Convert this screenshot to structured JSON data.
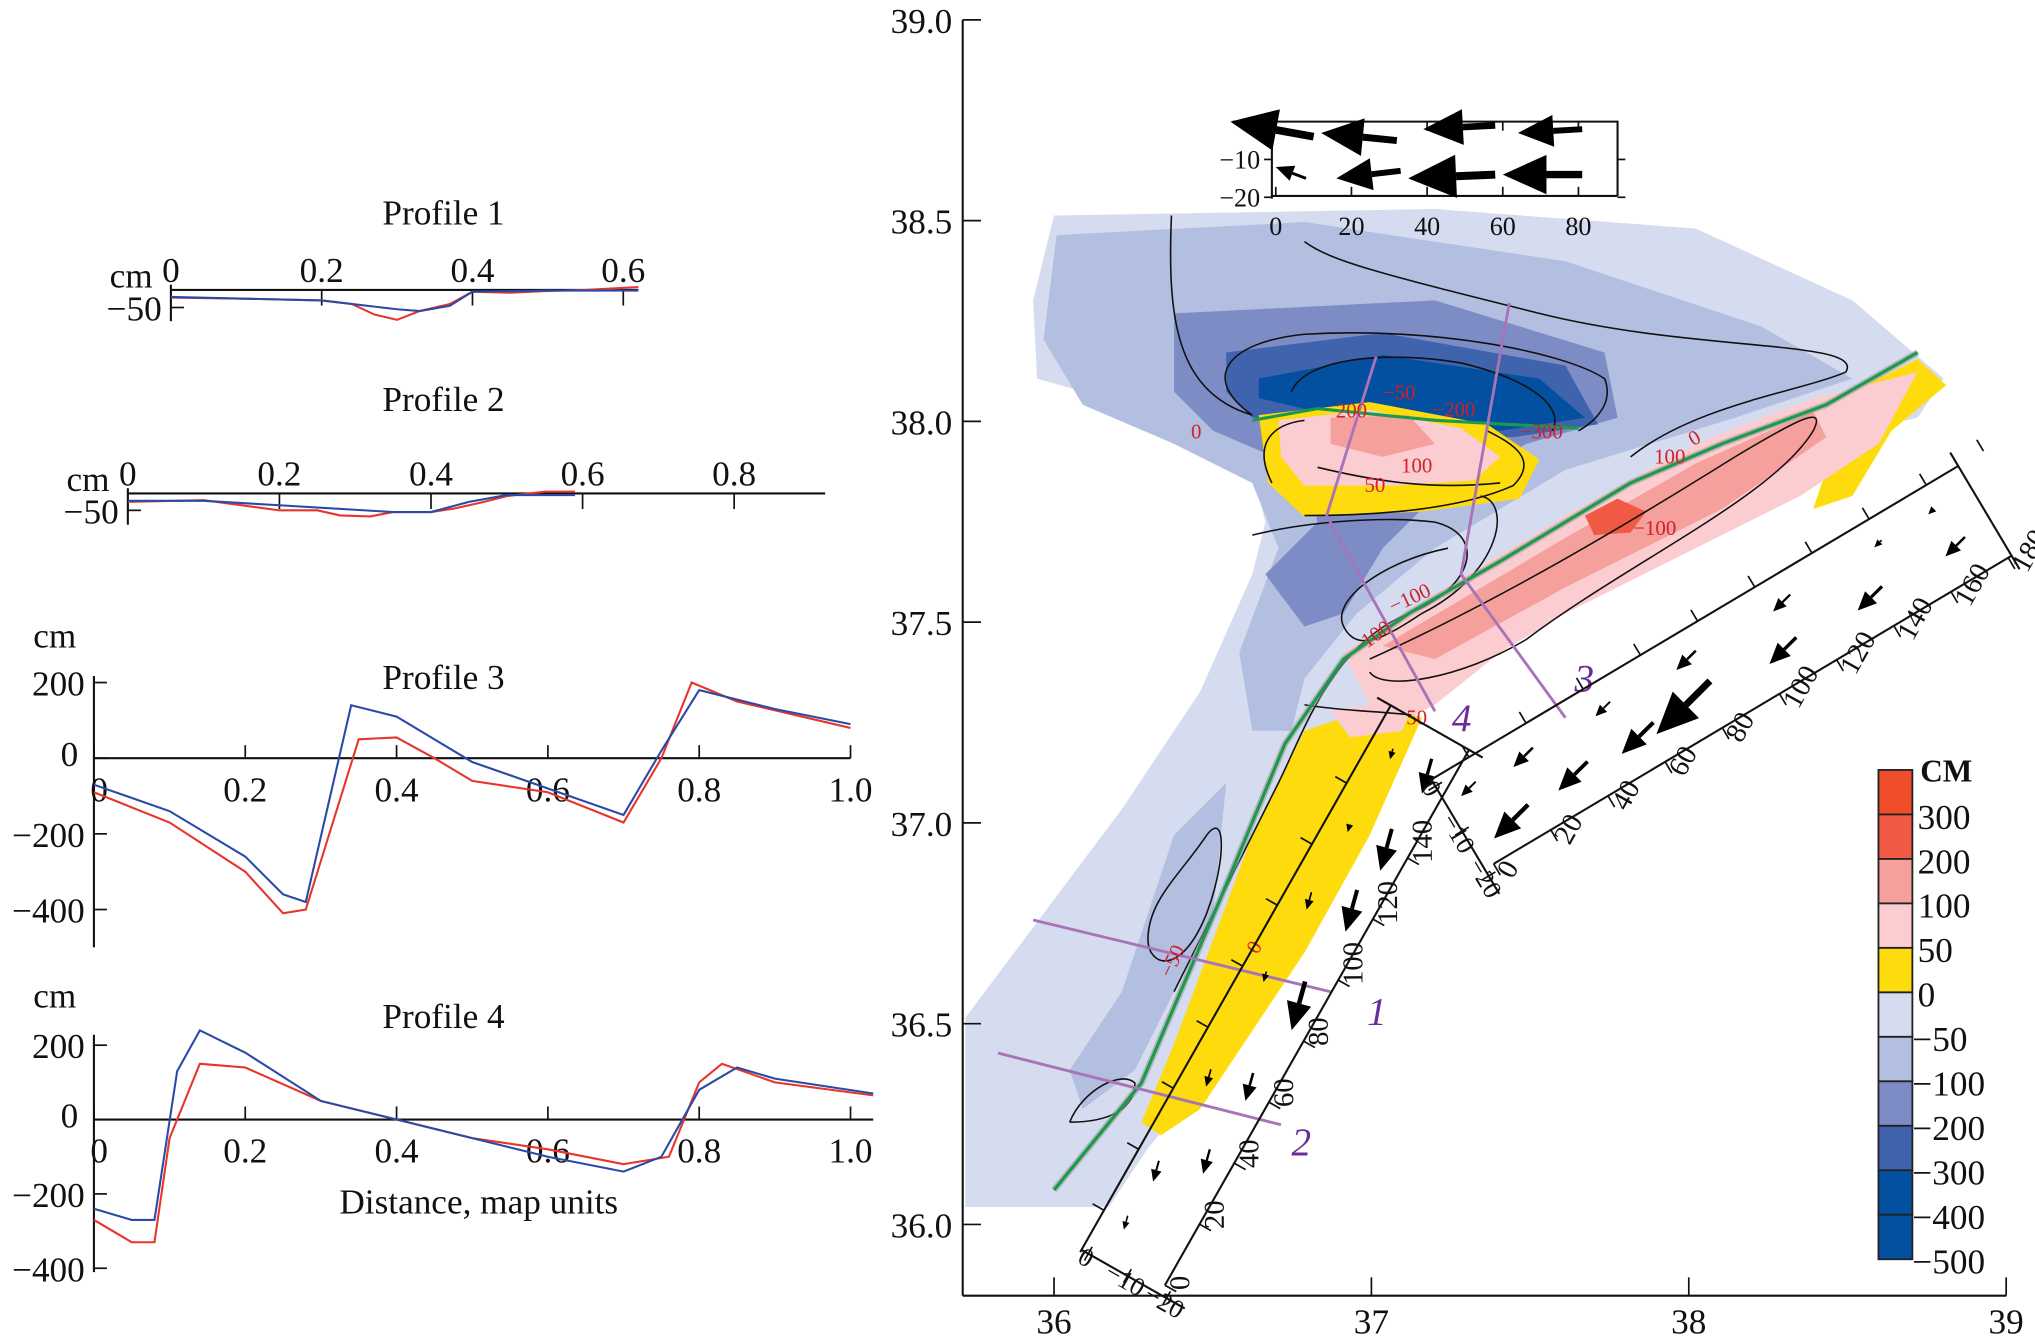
{
  "chart_data": [
    {
      "type": "line",
      "title": "Profile 1",
      "ylabel": "cm",
      "xticks": [
        0,
        0.2,
        0.4,
        0.6
      ],
      "xtick_labels": [
        "0",
        "0.2",
        "0.4",
        "0.6"
      ],
      "yticks": [
        -50
      ],
      "ytick_labels": [
        "−50"
      ],
      "xlim": [
        0,
        0.62
      ],
      "series": [
        {
          "color": "#e8352b",
          "points": [
            [
              0,
              -22
            ],
            [
              0.1,
              -25
            ],
            [
              0.2,
              -30
            ],
            [
              0.24,
              -40
            ],
            [
              0.27,
              -70
            ],
            [
              0.3,
              -85
            ],
            [
              0.33,
              -60
            ],
            [
              0.37,
              -40
            ],
            [
              0.4,
              -5
            ],
            [
              0.45,
              -8
            ],
            [
              0.5,
              -3
            ],
            [
              0.55,
              0
            ],
            [
              0.62,
              8
            ]
          ]
        },
        {
          "color": "#2a4aa8",
          "points": [
            [
              0,
              -20
            ],
            [
              0.2,
              -30
            ],
            [
              0.3,
              -55
            ],
            [
              0.33,
              -60
            ],
            [
              0.37,
              -45
            ],
            [
              0.4,
              -5
            ],
            [
              0.5,
              -2
            ],
            [
              0.62,
              -2
            ]
          ]
        }
      ]
    },
    {
      "type": "line",
      "title": "Profile 2",
      "ylabel": "cm",
      "xticks": [
        0,
        0.2,
        0.4,
        0.6,
        0.8
      ],
      "xtick_labels": [
        "0",
        "0.2",
        "0.4",
        "0.6",
        "0.8"
      ],
      "yticks": [
        -50
      ],
      "ytick_labels": [
        "−50"
      ],
      "xlim": [
        0,
        0.92
      ],
      "series": [
        {
          "color": "#e8352b",
          "points": [
            [
              0,
              -25
            ],
            [
              0.1,
              -20
            ],
            [
              0.2,
              -50
            ],
            [
              0.25,
              -50
            ],
            [
              0.28,
              -65
            ],
            [
              0.32,
              -68
            ],
            [
              0.35,
              -55
            ],
            [
              0.4,
              -55
            ],
            [
              0.43,
              -45
            ],
            [
              0.47,
              -25
            ],
            [
              0.5,
              -8
            ],
            [
              0.55,
              5
            ],
            [
              0.59,
              5
            ]
          ]
        },
        {
          "color": "#2a4aa8",
          "points": [
            [
              0,
              -22
            ],
            [
              0.1,
              -22
            ],
            [
              0.2,
              -35
            ],
            [
              0.35,
              -55
            ],
            [
              0.4,
              -55
            ],
            [
              0.45,
              -25
            ],
            [
              0.5,
              -5
            ],
            [
              0.59,
              -5
            ]
          ]
        }
      ]
    },
    {
      "type": "line",
      "title": "Profile 3",
      "ylabel": "cm",
      "xticks": [
        0,
        0.2,
        0.4,
        0.6,
        0.8,
        1.0
      ],
      "xtick_labels": [
        "0",
        "0.2",
        "0.4",
        "0.6",
        "0.8",
        "1.0"
      ],
      "yticks": [
        200,
        0,
        -200,
        -400
      ],
      "ytick_labels": [
        "200",
        "0",
        "−200",
        "−400"
      ],
      "xlim": [
        0,
        1.0
      ],
      "series": [
        {
          "color": "#e8352b",
          "points": [
            [
              0,
              -90
            ],
            [
              0.1,
              -170
            ],
            [
              0.2,
              -300
            ],
            [
              0.25,
              -410
            ],
            [
              0.28,
              -400
            ],
            [
              0.35,
              50
            ],
            [
              0.4,
              55
            ],
            [
              0.45,
              0
            ],
            [
              0.5,
              -60
            ],
            [
              0.6,
              -90
            ],
            [
              0.7,
              -170
            ],
            [
              0.75,
              0
            ],
            [
              0.79,
              200
            ],
            [
              0.85,
              150
            ],
            [
              1.0,
              80
            ]
          ]
        },
        {
          "color": "#2a4aa8",
          "points": [
            [
              0,
              -70
            ],
            [
              0.1,
              -140
            ],
            [
              0.2,
              -260
            ],
            [
              0.25,
              -360
            ],
            [
              0.28,
              -380
            ],
            [
              0.34,
              140
            ],
            [
              0.4,
              110
            ],
            [
              0.5,
              -10
            ],
            [
              0.6,
              -80
            ],
            [
              0.7,
              -150
            ],
            [
              0.75,
              20
            ],
            [
              0.8,
              180
            ],
            [
              0.9,
              130
            ],
            [
              1.0,
              90
            ]
          ]
        }
      ]
    },
    {
      "type": "line",
      "title": "Profile 4",
      "ylabel": "cm",
      "xlabel": "Distance, map units",
      "xticks": [
        0,
        0.2,
        0.4,
        0.6,
        0.8,
        1.0
      ],
      "xtick_labels": [
        "0",
        "0.2",
        "0.4",
        "0.6",
        "0.8",
        "1.0"
      ],
      "yticks": [
        200,
        0,
        -200,
        -400
      ],
      "ytick_labels": [
        "200",
        "0",
        "−200",
        "−400"
      ],
      "xlim": [
        0,
        1.03
      ],
      "series": [
        {
          "color": "#e8352b",
          "points": [
            [
              0,
              -270
            ],
            [
              0.05,
              -330
            ],
            [
              0.08,
              -330
            ],
            [
              0.1,
              -50
            ],
            [
              0.14,
              150
            ],
            [
              0.2,
              140
            ],
            [
              0.3,
              50
            ],
            [
              0.4,
              0
            ],
            [
              0.5,
              -50
            ],
            [
              0.6,
              -80
            ],
            [
              0.7,
              -120
            ],
            [
              0.76,
              -100
            ],
            [
              0.8,
              100
            ],
            [
              0.83,
              150
            ],
            [
              0.9,
              100
            ],
            [
              1.03,
              65
            ]
          ]
        },
        {
          "color": "#2a4aa8",
          "points": [
            [
              0,
              -240
            ],
            [
              0.05,
              -270
            ],
            [
              0.08,
              -270
            ],
            [
              0.11,
              130
            ],
            [
              0.14,
              240
            ],
            [
              0.2,
              180
            ],
            [
              0.3,
              50
            ],
            [
              0.4,
              0
            ],
            [
              0.5,
              -50
            ],
            [
              0.6,
              -100
            ],
            [
              0.7,
              -140
            ],
            [
              0.75,
              -100
            ],
            [
              0.8,
              80
            ],
            [
              0.85,
              140
            ],
            [
              0.9,
              110
            ],
            [
              1.03,
              70
            ]
          ]
        }
      ]
    },
    {
      "type": "heatmap",
      "title": "",
      "xticks": [
        36,
        37,
        38,
        39
      ],
      "xtick_labels": [
        "36",
        "37",
        "38",
        "39"
      ],
      "yticks": [
        39.0,
        38.5,
        38.0,
        37.5,
        37.0,
        36.5,
        36.0
      ],
      "ytick_labels": [
        "39.0",
        "38.5",
        "38.0",
        "37.5",
        "37.0",
        "36.5",
        "36.0"
      ],
      "xlim": [
        35.7,
        39
      ],
      "ylim": [
        35.82,
        39
      ],
      "colorbar": {
        "unit": "СМ",
        "labels": [
          "300",
          "200",
          "100",
          "50",
          "0",
          "−50",
          "−100",
          "−200",
          "−300",
          "−400",
          "−500"
        ],
        "colors": [
          "#f04e2a",
          "#f05a45",
          "#f5a09c",
          "#fbcdd0",
          "#fddb0c",
          "#d6dcef",
          "#b3bfe0",
          "#7d8cc5",
          "#3f63ad",
          "#0350a0",
          "#0350a0"
        ]
      },
      "profile_labels": [
        "1",
        "2",
        "3",
        "4"
      ],
      "contour_labels": [
        "0",
        "200",
        "−50",
        "−200",
        "−300",
        "100",
        "50",
        "−100",
        "100",
        "0",
        "−100",
        "100",
        "50",
        "0",
        "−50"
      ],
      "inset": {
        "xticks": [
          "0",
          "20",
          "40",
          "60",
          "80"
        ],
        "yticks": [
          "−10",
          "−20"
        ],
        "arrows": [
          [
            10,
            -4,
            -12,
            0
          ],
          [
            32,
            -5,
            12,
            -3
          ],
          [
            58,
            -1,
            39,
            -2
          ],
          [
            81,
            -2,
            64,
            -3
          ],
          [
            8,
            -15,
            0,
            -12
          ],
          [
            33,
            -13,
            16,
            -15
          ],
          [
            58,
            -14,
            35,
            -15
          ],
          [
            81,
            -14,
            60,
            -14
          ]
        ]
      },
      "strip_sw": {
        "ticks": [
          "0",
          "20",
          "40",
          "60",
          "80",
          "100",
          "120",
          "140"
        ],
        "cross_ticks": [
          "0",
          "−10",
          "−20"
        ],
        "arrows": [
          [
            168,
            -8,
            10
          ],
          [
            145,
            -8,
            12
          ],
          [
            125,
            -8,
            12
          ],
          [
            95,
            -8,
            14
          ],
          [
            65,
            -8,
            8
          ],
          [
            40,
            -8,
            7
          ],
          [
            165,
            -19,
            3
          ],
          [
            140,
            -19,
            2
          ],
          [
            118,
            -19,
            5
          ],
          [
            92,
            -19,
            3
          ],
          [
            60,
            -19,
            5
          ],
          [
            30,
            -19,
            6
          ],
          [
            12,
            -19,
            4
          ]
        ]
      },
      "strip_ne": {
        "ticks": [
          "0",
          "20",
          "40",
          "60",
          "80",
          "100",
          "120",
          "140",
          "160",
          "180"
        ],
        "cross_ticks": [
          "0",
          "−10",
          "−20"
        ],
        "arrows": [
          [
            172,
            -12,
            8
          ],
          [
            143,
            -12,
            10
          ],
          [
            113,
            -12,
            11
          ],
          [
            84,
            -14,
            22
          ],
          [
            63,
            -12,
            13
          ],
          [
            40,
            -12,
            12
          ],
          [
            18,
            -10,
            14
          ],
          [
            168,
            -24,
            2
          ],
          [
            150,
            -24,
            3
          ],
          [
            118,
            -24,
            7
          ],
          [
            85,
            -24,
            8
          ],
          [
            55,
            -24,
            6
          ],
          [
            28,
            -24,
            8
          ],
          [
            8,
            -24,
            6
          ]
        ]
      }
    }
  ]
}
